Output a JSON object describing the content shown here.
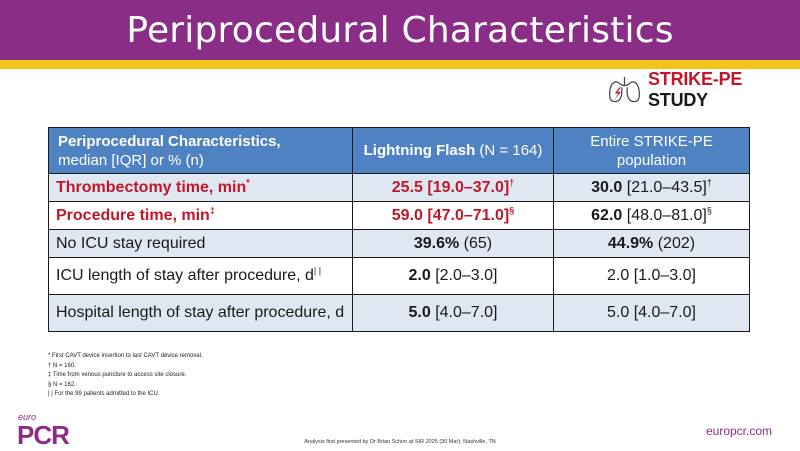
{
  "header": {
    "title": "Periprocedural Characteristics"
  },
  "study_logo": {
    "name_accent": "STRIKE-PE",
    "name_rest": " STUDY",
    "icon": "lungs-lightning-icon"
  },
  "table": {
    "header": {
      "col0_bold": "Periprocedural Characteristics,",
      "col0_rest": "median [IQR] or % (n)",
      "col1_bold": "Lightning Flash",
      "col1_rest": " (N = 164)",
      "col2_line1": "Entire STRIKE-PE",
      "col2_line2": "population"
    },
    "rows": [
      {
        "label": "Thrombectomy time, min",
        "label_sup": "*",
        "v1": "25.5 [19.0–37.0]",
        "v1_sup": "†",
        "v2_bold": "30.0",
        "v2_rest": " [21.0–43.5]",
        "v2_sup": "†"
      },
      {
        "label": "Procedure time, min",
        "label_sup": "‡",
        "v1": "59.0 [47.0–71.0]",
        "v1_sup": "§",
        "v2_bold": "62.0",
        "v2_rest": " [48.0–81.0]",
        "v2_sup": "§"
      },
      {
        "label": "No ICU stay required",
        "v1_bold": "39.6%",
        "v1_rest": " (65)",
        "v2_bold": "44.9%",
        "v2_rest": " (202)"
      },
      {
        "label": "ICU length of stay after procedure, d",
        "label_sup": "| |",
        "v1_bold": "2.0",
        "v1_rest": " [2.0–3.0]",
        "v2": "2.0 [1.0–3.0]"
      },
      {
        "label": "Hospital length of stay after procedure, d",
        "v1_bold": "5.0",
        "v1_rest": " [4.0–7.0]",
        "v2": "5.0 [4.0–7.0]"
      }
    ]
  },
  "footnotes": [
    "* First CAVT device insertion to last CAVT device removal.",
    "† N = 160.",
    "‡ Time from venous puncture to access site closure.",
    "§ N = 162.",
    "| | For the 99 patients admitted to the ICU."
  ],
  "footer": {
    "logo_small": "euro",
    "logo_big": "PCR",
    "analysis": "Analysis first presented by Dr Brian Schiro at SIR 2025 (30 Mar); Nashville, TN",
    "url": "europcr.com"
  },
  "colors": {
    "header_bg": "#8a2d86",
    "header_line": "#f2c318",
    "table_head": "#4f82c2",
    "row_shade": "#dfe7f2",
    "accent_red": "#c0182a"
  }
}
